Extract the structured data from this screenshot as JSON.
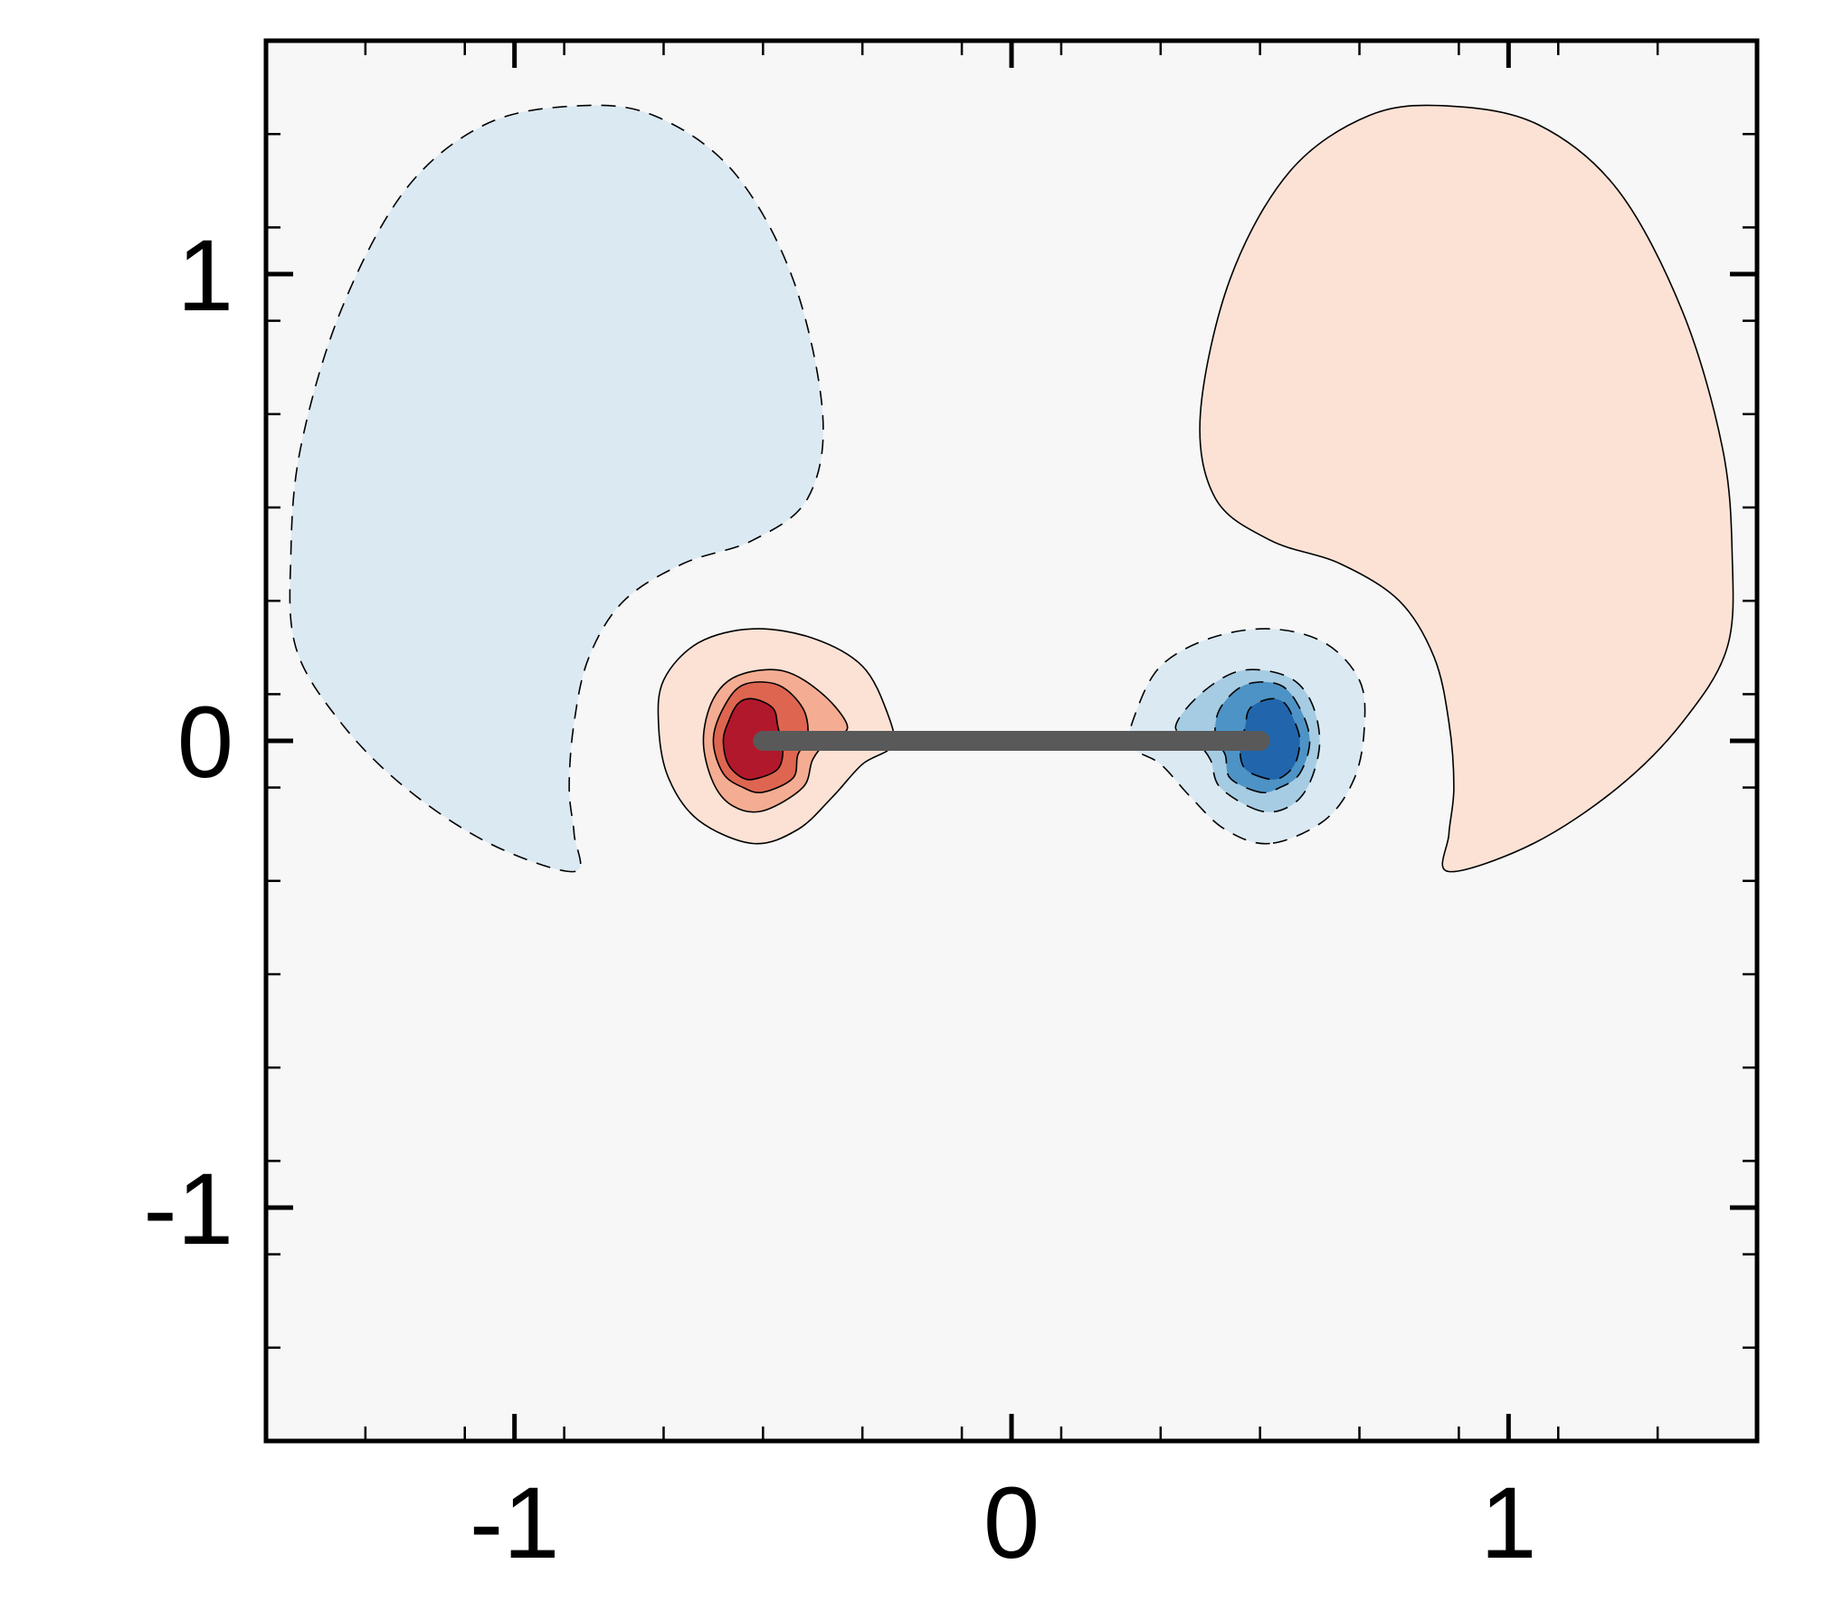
{
  "chart_data": {
    "type": "contour",
    "title": "",
    "xlabel": "",
    "ylabel": "",
    "xlim": [
      -1.5,
      1.5
    ],
    "ylim": [
      -1.5,
      1.5
    ],
    "grid": false,
    "legend": "none",
    "x_major_ticks": [
      {
        "value": -1,
        "label": "-1"
      },
      {
        "value": 0,
        "label": "0"
      },
      {
        "value": 1,
        "label": "1"
      }
    ],
    "y_major_ticks": [
      {
        "value": 1,
        "label": "1"
      },
      {
        "value": 0,
        "label": "0"
      },
      {
        "value": -1,
        "label": "-1"
      }
    ],
    "minor_tick_step": 0.2,
    "plate": {
      "x_start": -0.5,
      "x_end": 0.5,
      "y": 0,
      "color": "#595959"
    },
    "colors": {
      "background": "#f7f7f7",
      "axis": "#000000",
      "positive_levels": [
        "#fbe2d5",
        "#f4ad92",
        "#de6650",
        "#b2182b"
      ],
      "negative_levels": [
        "#dbe9f2",
        "#a6cce3",
        "#4d93c5",
        "#2166ac"
      ]
    },
    "regions": [
      {
        "name": "upper-left-negative-lobe",
        "sign": "negative",
        "level": 1,
        "points": [
          [
            -0.88,
            -0.28
          ],
          [
            -1.05,
            -0.22
          ],
          [
            -1.22,
            -0.1
          ],
          [
            -1.35,
            0.04
          ],
          [
            -1.44,
            0.2
          ],
          [
            -1.45,
            0.4
          ],
          [
            -1.43,
            0.63
          ],
          [
            -1.35,
            0.92
          ],
          [
            -1.22,
            1.18
          ],
          [
            -1.06,
            1.32
          ],
          [
            -0.88,
            1.36
          ],
          [
            -0.72,
            1.34
          ],
          [
            -0.56,
            1.22
          ],
          [
            -0.44,
            0.99
          ],
          [
            -0.38,
            0.7
          ],
          [
            -0.41,
            0.52
          ],
          [
            -0.52,
            0.43
          ],
          [
            -0.66,
            0.38
          ],
          [
            -0.78,
            0.3
          ],
          [
            -0.85,
            0.18
          ],
          [
            -0.88,
            0.04
          ],
          [
            -0.89,
            -0.1
          ],
          [
            -0.88,
            -0.2
          ]
        ]
      },
      {
        "name": "upper-right-positive-lobe",
        "sign": "positive",
        "level": 1,
        "points": [
          [
            0.88,
            -0.28
          ],
          [
            1.05,
            -0.22
          ],
          [
            1.22,
            -0.1
          ],
          [
            1.35,
            0.04
          ],
          [
            1.44,
            0.2
          ],
          [
            1.45,
            0.4
          ],
          [
            1.43,
            0.63
          ],
          [
            1.35,
            0.92
          ],
          [
            1.22,
            1.18
          ],
          [
            1.06,
            1.32
          ],
          [
            0.88,
            1.36
          ],
          [
            0.72,
            1.34
          ],
          [
            0.56,
            1.22
          ],
          [
            0.44,
            0.99
          ],
          [
            0.38,
            0.7
          ],
          [
            0.41,
            0.52
          ],
          [
            0.52,
            0.43
          ],
          [
            0.66,
            0.38
          ],
          [
            0.78,
            0.3
          ],
          [
            0.85,
            0.18
          ],
          [
            0.88,
            0.04
          ],
          [
            0.89,
            -0.1
          ],
          [
            0.88,
            -0.2
          ]
        ]
      },
      {
        "name": "left-tip-vortex-level-1",
        "sign": "positive",
        "level": 1,
        "points": [
          [
            -0.52,
            -0.22
          ],
          [
            -0.43,
            -0.19
          ],
          [
            -0.36,
            -0.12
          ],
          [
            -0.3,
            -0.05
          ],
          [
            -0.24,
            -0.01
          ],
          [
            -0.25,
            0.06
          ],
          [
            -0.3,
            0.16
          ],
          [
            -0.4,
            0.22
          ],
          [
            -0.52,
            0.24
          ],
          [
            -0.63,
            0.21
          ],
          [
            -0.7,
            0.13
          ],
          [
            -0.71,
            0.03
          ],
          [
            -0.69,
            -0.08
          ],
          [
            -0.63,
            -0.17
          ]
        ]
      },
      {
        "name": "right-tip-vortex-level-1",
        "sign": "negative",
        "level": 1,
        "points": [
          [
            0.52,
            -0.22
          ],
          [
            0.43,
            -0.19
          ],
          [
            0.36,
            -0.12
          ],
          [
            0.3,
            -0.05
          ],
          [
            0.24,
            -0.01
          ],
          [
            0.25,
            0.06
          ],
          [
            0.3,
            0.16
          ],
          [
            0.4,
            0.22
          ],
          [
            0.52,
            0.24
          ],
          [
            0.63,
            0.21
          ],
          [
            0.7,
            0.13
          ],
          [
            0.71,
            0.03
          ],
          [
            0.69,
            -0.08
          ],
          [
            0.63,
            -0.17
          ]
        ]
      },
      {
        "name": "left-tip-vortex-level-2",
        "sign": "positive",
        "level": 2,
        "points": [
          [
            -0.5,
            -0.15
          ],
          [
            -0.42,
            -0.1
          ],
          [
            -0.4,
            -0.04
          ],
          [
            -0.37,
            0.0
          ],
          [
            -0.33,
            0.03
          ],
          [
            -0.38,
            0.1
          ],
          [
            -0.46,
            0.15
          ],
          [
            -0.55,
            0.14
          ],
          [
            -0.6,
            0.09
          ],
          [
            -0.62,
            0.0
          ],
          [
            -0.6,
            -0.09
          ],
          [
            -0.56,
            -0.14
          ]
        ]
      },
      {
        "name": "right-tip-vortex-level-2",
        "sign": "negative",
        "level": 2,
        "points": [
          [
            0.5,
            -0.15
          ],
          [
            0.42,
            -0.1
          ],
          [
            0.4,
            -0.04
          ],
          [
            0.37,
            0.0
          ],
          [
            0.33,
            0.03
          ],
          [
            0.38,
            0.1
          ],
          [
            0.46,
            0.15
          ],
          [
            0.55,
            0.14
          ],
          [
            0.6,
            0.09
          ],
          [
            0.62,
            0.0
          ],
          [
            0.6,
            -0.09
          ],
          [
            0.56,
            -0.14
          ]
        ]
      },
      {
        "name": "left-tip-vortex-level-3",
        "sign": "positive",
        "level": 3,
        "points": [
          [
            -0.5,
            -0.11
          ],
          [
            -0.44,
            -0.08
          ],
          [
            -0.43,
            -0.03
          ],
          [
            -0.41,
            0.01
          ],
          [
            -0.42,
            0.07
          ],
          [
            -0.47,
            0.12
          ],
          [
            -0.54,
            0.12
          ],
          [
            -0.58,
            0.07
          ],
          [
            -0.6,
            0.0
          ],
          [
            -0.58,
            -0.07
          ],
          [
            -0.54,
            -0.1
          ]
        ]
      },
      {
        "name": "right-tip-vortex-level-3",
        "sign": "negative",
        "level": 3,
        "points": [
          [
            0.5,
            -0.11
          ],
          [
            0.44,
            -0.08
          ],
          [
            0.43,
            -0.03
          ],
          [
            0.41,
            0.01
          ],
          [
            0.42,
            0.07
          ],
          [
            0.47,
            0.12
          ],
          [
            0.54,
            0.12
          ],
          [
            0.58,
            0.07
          ],
          [
            0.6,
            0.0
          ],
          [
            0.58,
            -0.07
          ],
          [
            0.54,
            -0.1
          ]
        ]
      },
      {
        "name": "left-tip-vortex-core",
        "sign": "positive",
        "level": 4,
        "points": [
          [
            -0.51,
            -0.08
          ],
          [
            -0.47,
            -0.06
          ],
          [
            -0.46,
            -0.02
          ],
          [
            -0.47,
            0.03
          ],
          [
            -0.48,
            0.07
          ],
          [
            -0.52,
            0.09
          ],
          [
            -0.55,
            0.08
          ],
          [
            -0.57,
            0.04
          ],
          [
            -0.58,
            0.0
          ],
          [
            -0.57,
            -0.05
          ],
          [
            -0.54,
            -0.08
          ]
        ]
      },
      {
        "name": "right-tip-vortex-core",
        "sign": "negative",
        "level": 4,
        "points": [
          [
            0.51,
            -0.08
          ],
          [
            0.47,
            -0.06
          ],
          [
            0.46,
            -0.02
          ],
          [
            0.47,
            0.03
          ],
          [
            0.48,
            0.07
          ],
          [
            0.52,
            0.09
          ],
          [
            0.55,
            0.08
          ],
          [
            0.57,
            0.04
          ],
          [
            0.58,
            0.0
          ],
          [
            0.57,
            -0.05
          ],
          [
            0.54,
            -0.08
          ]
        ]
      }
    ]
  }
}
